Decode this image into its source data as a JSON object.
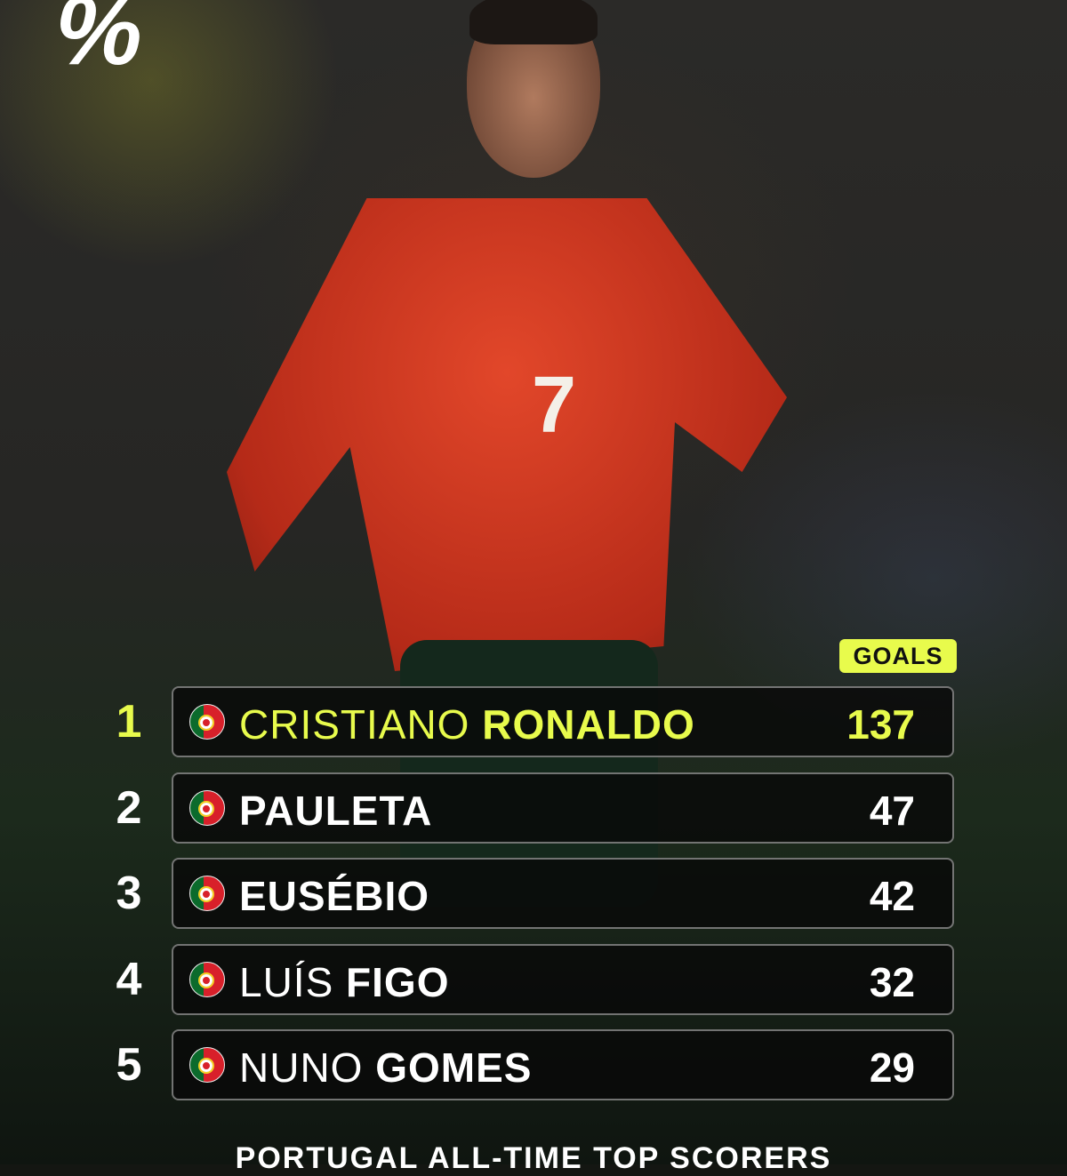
{
  "brand": {
    "logo_text": "%",
    "accent": "#e8fb4c"
  },
  "header": {
    "goals_label": "GOALS"
  },
  "jersey_number": "7",
  "rows": [
    {
      "rank": "1",
      "first": "CRISTIANO",
      "last": "RONALDO",
      "goals": "137",
      "flag": "portugal-flag-icon",
      "highlight": true
    },
    {
      "rank": "2",
      "first": "",
      "last": "PAULETA",
      "goals": "47",
      "flag": "portugal-flag-icon"
    },
    {
      "rank": "3",
      "first": "",
      "last": "EUSÉBIO",
      "goals": "42",
      "flag": "portugal-flag-icon"
    },
    {
      "rank": "4",
      "first": "LUÍS",
      "last": "FIGO",
      "goals": "32",
      "flag": "portugal-flag-icon"
    },
    {
      "rank": "5",
      "first": "NUNO",
      "last": "GOMES",
      "goals": "29",
      "flag": "portugal-flag-icon"
    }
  ],
  "footer": {
    "title": "PORTUGAL ALL-TIME TOP SCORERS"
  }
}
